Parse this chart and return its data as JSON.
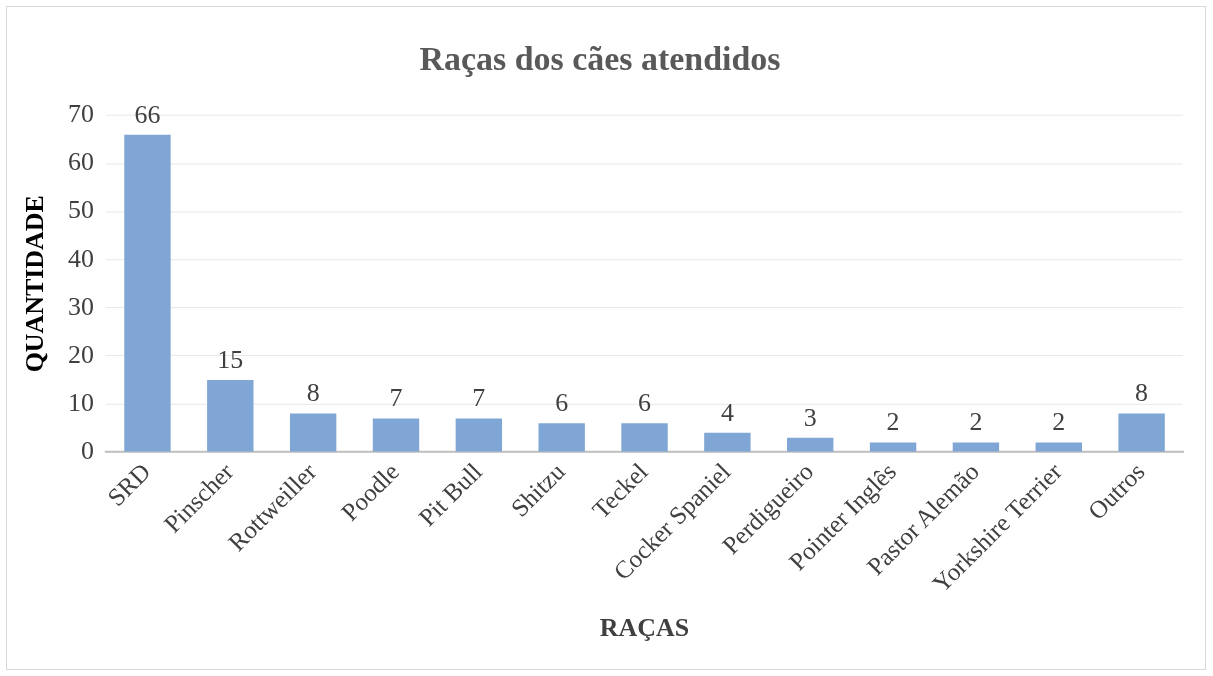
{
  "chart_data": {
    "type": "bar",
    "title": "Raças dos cães atendidos",
    "xlabel": "RAÇAS",
    "ylabel": "QUANTIDADE",
    "categories": [
      "SRD",
      "Pinscher",
      "Rottweiller",
      "Poodle",
      "Pit Bull",
      "Shitzu",
      "Teckel",
      "Cocker Spaniel",
      "Perdigueiro",
      "Pointer Inglês",
      "Pastor Alemão",
      "Yorkshire Terrier",
      "Outros"
    ],
    "values": [
      66,
      15,
      8,
      7,
      7,
      6,
      6,
      4,
      3,
      2,
      2,
      2,
      8
    ],
    "color": "#7fa6d4",
    "ylim": [
      0,
      70
    ],
    "yticks": [
      0,
      10,
      20,
      30,
      40,
      50,
      60,
      70
    ],
    "grid": "y",
    "legend": false,
    "data_labels": true
  }
}
